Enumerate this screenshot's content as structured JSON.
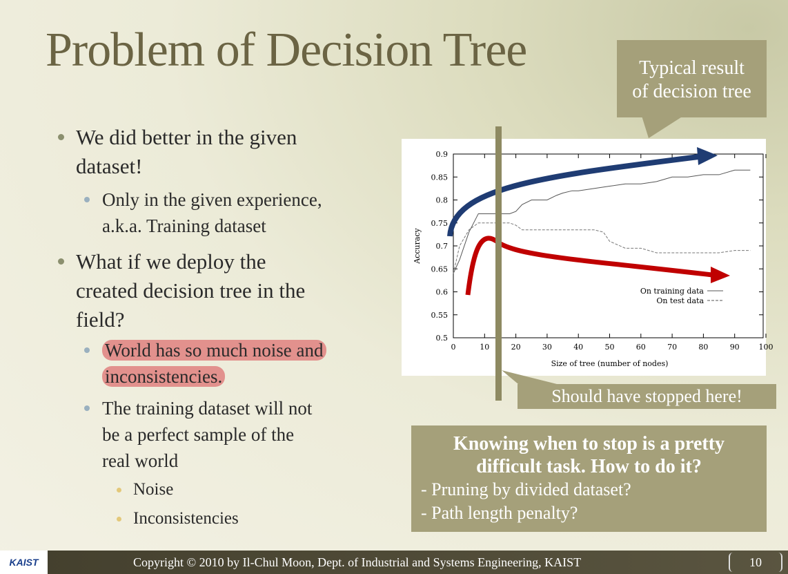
{
  "slide": {
    "title": "Problem of Decision Tree",
    "bullets": [
      {
        "level": 1,
        "lines": [
          "We did better in the given",
          "dataset!"
        ]
      },
      {
        "level": 2,
        "lines": [
          "Only in the given experience,",
          "a.k.a. Training dataset"
        ]
      },
      {
        "level": 1,
        "lines": [
          "What if we deploy the",
          "created decision tree in the",
          "field?"
        ]
      },
      {
        "level": 2,
        "lines": [
          "World has so much noise and",
          "inconsistencies."
        ],
        "highlight": true
      },
      {
        "level": 2,
        "lines": [
          "The training dataset will not",
          "be a perfect sample of the",
          "real world"
        ]
      },
      {
        "level": 3,
        "lines": [
          "Noise"
        ]
      },
      {
        "level": 3,
        "lines": [
          "Inconsistencies"
        ]
      }
    ],
    "callout_top": [
      "Typical result",
      "of decision tree"
    ],
    "callout_stop": "Should have stopped here!",
    "callout_bottom": {
      "title_lines": [
        "Knowing when to stop is a pretty",
        "difficult task. How to do it?"
      ],
      "items": [
        "- Pruning by divided dataset?",
        "- Path length penalty?"
      ]
    },
    "footer": {
      "logo": "KAIST",
      "copyright": "Copyright © 2010 by Il-Chul Moon, Dept. of Industrial and Systems Engineering, KAIST",
      "page": "10"
    }
  },
  "chart_data": {
    "type": "line",
    "xlabel": "Size of tree (number of nodes)",
    "ylabel": "Accuracy",
    "xlim": [
      0,
      100
    ],
    "ylim": [
      0.5,
      0.9
    ],
    "xticks": [
      "0",
      "10",
      "20",
      "30",
      "40",
      "50",
      "60",
      "70",
      "80",
      "90",
      "100"
    ],
    "yticks": [
      "0.5",
      "0.55",
      "0.6",
      "0.65",
      "0.7",
      "0.75",
      "0.8",
      "0.85",
      "0.9"
    ],
    "legend_position": "bottom-right",
    "series": [
      {
        "name": "On training data",
        "style": "solid",
        "x": [
          0,
          2,
          5,
          8,
          10,
          12,
          15,
          18,
          20,
          22,
          25,
          30,
          33,
          35,
          38,
          40,
          45,
          50,
          55,
          60,
          65,
          70,
          75,
          80,
          85,
          90,
          95
        ],
        "y": [
          0.64,
          0.67,
          0.73,
          0.77,
          0.77,
          0.77,
          0.77,
          0.77,
          0.775,
          0.79,
          0.8,
          0.8,
          0.81,
          0.815,
          0.82,
          0.82,
          0.825,
          0.83,
          0.835,
          0.835,
          0.84,
          0.85,
          0.85,
          0.855,
          0.855,
          0.865,
          0.865
        ]
      },
      {
        "name": "On test data",
        "style": "dashed",
        "x": [
          0,
          2,
          5,
          8,
          10,
          12,
          15,
          18,
          20,
          22,
          25,
          30,
          40,
          45,
          48,
          50,
          55,
          60,
          65,
          70,
          75,
          80,
          85,
          90,
          95
        ],
        "y": [
          0.64,
          0.7,
          0.735,
          0.75,
          0.75,
          0.75,
          0.75,
          0.75,
          0.745,
          0.735,
          0.735,
          0.735,
          0.735,
          0.735,
          0.73,
          0.71,
          0.695,
          0.695,
          0.685,
          0.685,
          0.685,
          0.685,
          0.685,
          0.69,
          0.69
        ]
      }
    ],
    "colors": {
      "training_arrow": "#1f3c73",
      "test_arrow": "#c00000",
      "stop_marker": "#8e8a62"
    }
  }
}
